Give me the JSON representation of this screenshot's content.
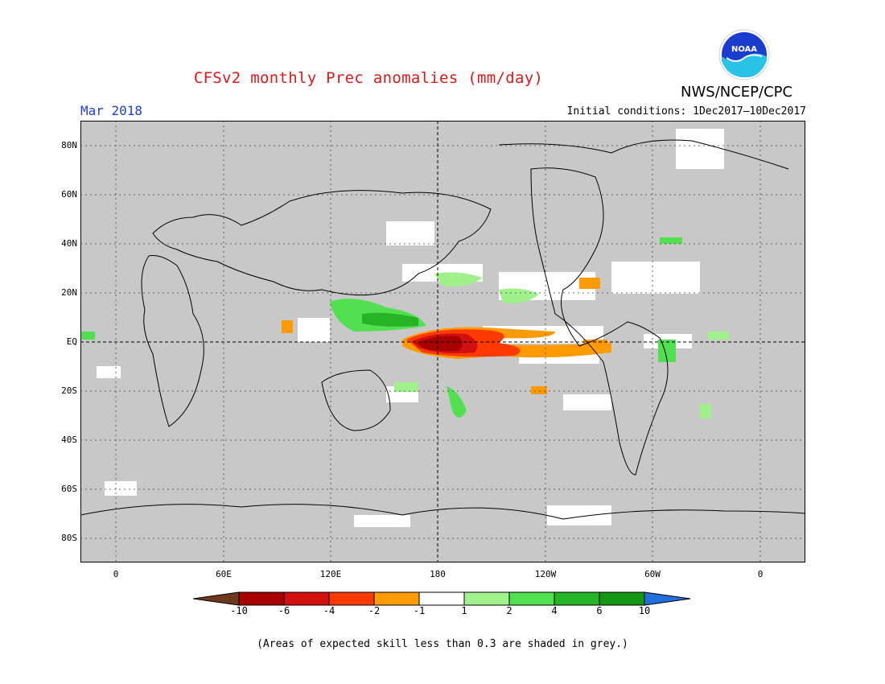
{
  "header": {
    "title": "CFSv2 monthly Prec anomalies (mm/day)",
    "agency": "NWS/NCEP/CPC",
    "logo_text": "NOAA",
    "month": "Mar 2018",
    "initial_conditions": "Initial conditions: 1Dec2017–10Dec2017"
  },
  "map": {
    "projection": "equirectangular",
    "lat_labels": [
      "80N",
      "60N",
      "40N",
      "20N",
      "EQ",
      "20S",
      "40S",
      "60S",
      "80S"
    ],
    "lon_labels": [
      "0",
      "60E",
      "120E",
      "180",
      "120W",
      "60W",
      "0"
    ],
    "background_color": "#c8c8c8",
    "highlight": "Strong negative anomaly (dry) along equatorial central Pacific; positive (wet) over Maritime Continent"
  },
  "legend": {
    "labels": [
      "-10",
      "-6",
      "-4",
      "-2",
      "-1",
      "1",
      "2",
      "4",
      "6",
      "10"
    ],
    "colors": [
      "#6b3a1c",
      "#a80000",
      "#d11010",
      "#ff3a00",
      "#ff9a00",
      "#ffffff",
      "#a0f08c",
      "#50e050",
      "#26b426",
      "#149614",
      "#2070e0"
    ]
  },
  "footnote": "(Areas of expected skill less than 0.3 are shaded in grey.)"
}
